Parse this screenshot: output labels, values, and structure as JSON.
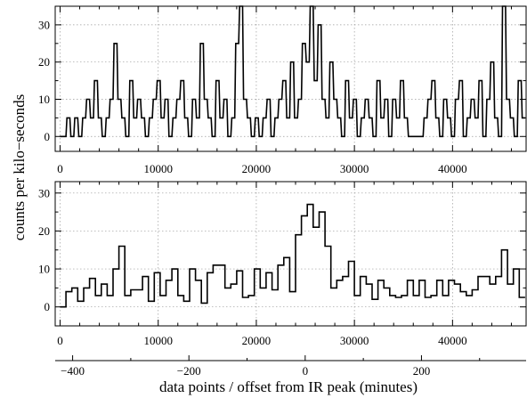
{
  "figure": {
    "ylabel": "counts per kilo−seconds",
    "xlabel": "data points  /  offset from IR peak (minutes)"
  },
  "chart_data": [
    {
      "type": "line",
      "style": "step",
      "x": [
        0,
        300,
        700,
        1100,
        1500,
        1900,
        2300,
        2700,
        3100,
        3500,
        3900,
        4300,
        4700,
        5100,
        5500,
        5900,
        6300,
        6700,
        7100,
        7500,
        7900,
        8300,
        8700,
        9100,
        9500,
        9900,
        10300,
        10700,
        11100,
        11500,
        11900,
        12300,
        12700,
        13100,
        13500,
        13900,
        14300,
        14700,
        15100,
        15500,
        15900,
        16300,
        16700,
        17100,
        17500,
        17900,
        18300,
        18700,
        19100,
        19500,
        19900,
        20300,
        20700,
        21100,
        21500,
        21900,
        22300,
        22700,
        23100,
        23500,
        23900,
        24300,
        24700,
        25100,
        25500,
        25900,
        26300,
        26700,
        27100,
        27500,
        27900,
        28300,
        28700,
        29100,
        29500,
        29900,
        30300,
        30700,
        31100,
        31500,
        31900,
        32300,
        32700,
        33100,
        33500,
        33900,
        34300,
        34700,
        35100,
        35500,
        35900,
        36300,
        36700,
        37100,
        37500,
        37900,
        38300,
        38700,
        39100,
        39500,
        39900,
        40300,
        40700,
        41100,
        41500,
        41900,
        42300,
        42700,
        43100,
        43500,
        43900,
        44300,
        44700,
        45100,
        45500,
        45900,
        46300,
        46700,
        47100
      ],
      "values": [
        0,
        0,
        5,
        0,
        5,
        0,
        5,
        10,
        5,
        15,
        5,
        0,
        5,
        10,
        25,
        10,
        5,
        0,
        15,
        5,
        10,
        5,
        0,
        5,
        10,
        15,
        5,
        10,
        0,
        5,
        10,
        15,
        5,
        0,
        10,
        5,
        25,
        10,
        5,
        0,
        15,
        5,
        10,
        0,
        5,
        25,
        35,
        10,
        5,
        0,
        5,
        0,
        5,
        10,
        0,
        5,
        10,
        15,
        5,
        20,
        5,
        10,
        25,
        20,
        35,
        15,
        30,
        10,
        5,
        20,
        10,
        5,
        0,
        15,
        5,
        10,
        0,
        5,
        10,
        5,
        0,
        15,
        5,
        10,
        0,
        10,
        5,
        15,
        5,
        0,
        0,
        0,
        0,
        5,
        10,
        15,
        5,
        0,
        10,
        5,
        0,
        10,
        15,
        0,
        5,
        10,
        5,
        15,
        0,
        10,
        20,
        5,
        0,
        35,
        10,
        5,
        0,
        15,
        5
      ],
      "xlim": [
        -500,
        47500
      ],
      "ylim": [
        -4,
        35
      ],
      "xticks": [
        0,
        10000,
        20000,
        30000,
        40000
      ],
      "yticks": [
        0,
        10,
        20,
        30
      ],
      "xtick_labels": [
        "0",
        "10000",
        "20000",
        "30000",
        "40000"
      ],
      "ytick_labels": [
        "0",
        "10",
        "20",
        "30"
      ],
      "grid": true
    },
    {
      "type": "line",
      "style": "step",
      "x": [
        0,
        600,
        1200,
        1800,
        2400,
        3000,
        3600,
        4200,
        4800,
        5400,
        6000,
        6600,
        7200,
        7800,
        8400,
        9000,
        9600,
        10200,
        10800,
        11400,
        12000,
        12600,
        13200,
        13800,
        14400,
        15000,
        15600,
        16200,
        16800,
        17400,
        18000,
        18600,
        19200,
        19800,
        20400,
        21000,
        21600,
        22200,
        22800,
        23400,
        24000,
        24600,
        25200,
        25800,
        26400,
        27000,
        27600,
        28200,
        28800,
        29400,
        30000,
        30600,
        31200,
        31800,
        32400,
        33000,
        33600,
        34200,
        34800,
        35400,
        36000,
        36600,
        37200,
        37800,
        38400,
        39000,
        39600,
        40200,
        40800,
        41400,
        42000,
        42600,
        43200,
        43800,
        44400,
        45000,
        45600,
        46200,
        46800
      ],
      "values": [
        0,
        4,
        5,
        1.5,
        5,
        7.5,
        3,
        6,
        3,
        10,
        16,
        3,
        4.5,
        4.5,
        8,
        1.5,
        9,
        3,
        7,
        10,
        3,
        1.5,
        10,
        7,
        1,
        9,
        11,
        11,
        5,
        6,
        9.5,
        2.5,
        3,
        10,
        5,
        9,
        4.5,
        11,
        13,
        4,
        19,
        24,
        27,
        21,
        25,
        16,
        5,
        7,
        8,
        12,
        3,
        8,
        6,
        2,
        7,
        5,
        3,
        2.5,
        3,
        7,
        3,
        7,
        2.5,
        3,
        7,
        3,
        7,
        6,
        4,
        3,
        4.5,
        8,
        8,
        6,
        8,
        15,
        6,
        10,
        2.5
      ],
      "xlim": [
        -500,
        47500
      ],
      "ylim": [
        -5,
        33
      ],
      "xticks": [
        0,
        10000,
        20000,
        30000,
        40000
      ],
      "yticks": [
        0,
        10,
        20,
        30
      ],
      "xtick_labels": [
        "0",
        "10000",
        "20000",
        "30000",
        "40000"
      ],
      "ytick_labels": [
        "0",
        "10",
        "20",
        "30"
      ],
      "secondary_xaxis": {
        "xlim": [
          -430,
          380
        ],
        "xticks": [
          -400,
          -200,
          0,
          200
        ],
        "xtick_labels": [
          "−400",
          "−200",
          "0",
          "200"
        ]
      },
      "grid": true
    }
  ]
}
